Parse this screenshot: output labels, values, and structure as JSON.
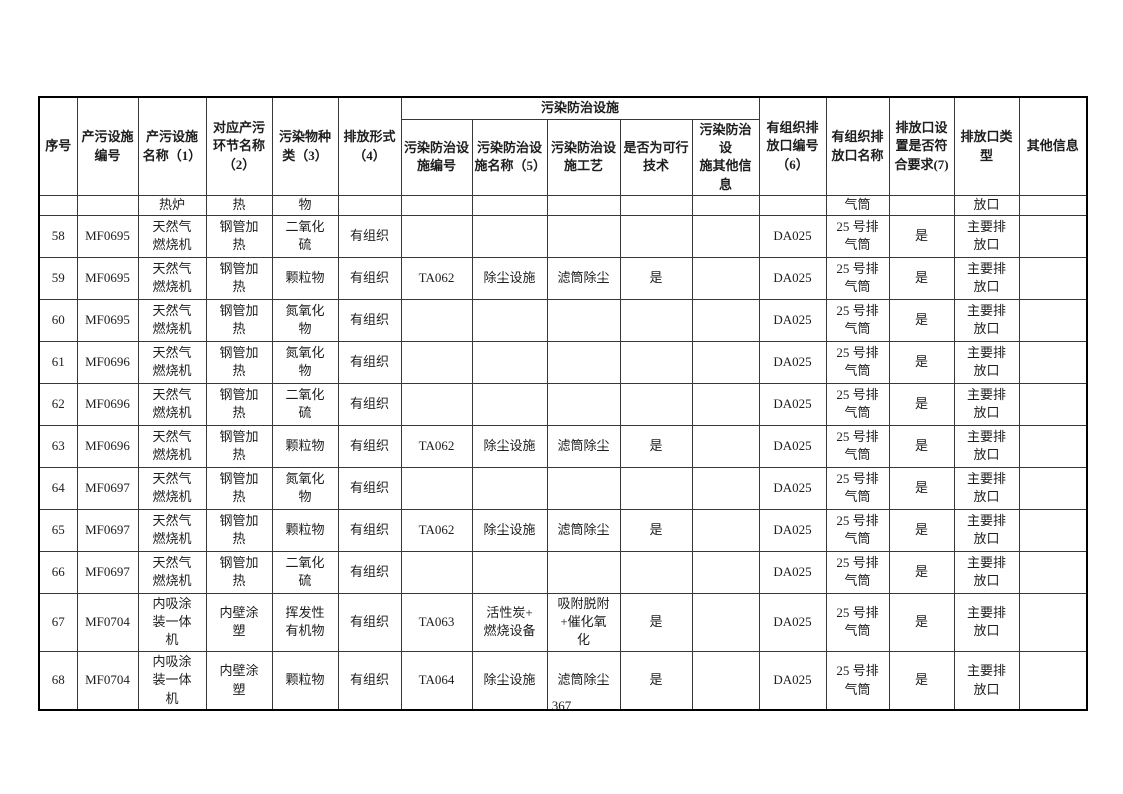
{
  "page": {
    "number": "367"
  },
  "table": {
    "header": {
      "group": "污染防治设施",
      "cells": [
        "序号",
        "产污设施\n编号",
        "产污设施\n名称（1）",
        "对应产污\n环节名称\n（2）",
        "污染物种\n类（3）",
        "排放形式\n（4）",
        "污染防治设\n施编号",
        "污染防治设\n施名称（5）",
        "污染防治设\n施工艺",
        "是否为可行\n技术",
        "污染防治设\n施其他信息",
        "有组织排\n放口编号\n（6）",
        "有组织排\n放口名称",
        "排放口设\n置是否符\n合要求(7)",
        "排放口类\n型",
        "其他信息"
      ]
    },
    "carryover_row": [
      "",
      "",
      "热炉",
      "热",
      "物",
      "",
      "",
      "",
      "",
      "",
      "",
      "",
      "气筒",
      "",
      "放口",
      ""
    ],
    "rows": [
      [
        "58",
        "MF0695",
        "天然气\n燃烧机",
        "钢管加\n热",
        "二氧化\n硫",
        "有组织",
        "",
        "",
        "",
        "",
        "",
        "DA025",
        "25 号排\n气筒",
        "是",
        "主要排\n放口",
        ""
      ],
      [
        "59",
        "MF0695",
        "天然气\n燃烧机",
        "钢管加\n热",
        "颗粒物",
        "有组织",
        "TA062",
        "除尘设施",
        "滤筒除尘",
        "是",
        "",
        "DA025",
        "25 号排\n气筒",
        "是",
        "主要排\n放口",
        ""
      ],
      [
        "60",
        "MF0695",
        "天然气\n燃烧机",
        "钢管加\n热",
        "氮氧化\n物",
        "有组织",
        "",
        "",
        "",
        "",
        "",
        "DA025",
        "25 号排\n气筒",
        "是",
        "主要排\n放口",
        ""
      ],
      [
        "61",
        "MF0696",
        "天然气\n燃烧机",
        "钢管加\n热",
        "氮氧化\n物",
        "有组织",
        "",
        "",
        "",
        "",
        "",
        "DA025",
        "25 号排\n气筒",
        "是",
        "主要排\n放口",
        ""
      ],
      [
        "62",
        "MF0696",
        "天然气\n燃烧机",
        "钢管加\n热",
        "二氧化\n硫",
        "有组织",
        "",
        "",
        "",
        "",
        "",
        "DA025",
        "25 号排\n气筒",
        "是",
        "主要排\n放口",
        ""
      ],
      [
        "63",
        "MF0696",
        "天然气\n燃烧机",
        "钢管加\n热",
        "颗粒物",
        "有组织",
        "TA062",
        "除尘设施",
        "滤筒除尘",
        "是",
        "",
        "DA025",
        "25 号排\n气筒",
        "是",
        "主要排\n放口",
        ""
      ],
      [
        "64",
        "MF0697",
        "天然气\n燃烧机",
        "钢管加\n热",
        "氮氧化\n物",
        "有组织",
        "",
        "",
        "",
        "",
        "",
        "DA025",
        "25 号排\n气筒",
        "是",
        "主要排\n放口",
        ""
      ],
      [
        "65",
        "MF0697",
        "天然气\n燃烧机",
        "钢管加\n热",
        "颗粒物",
        "有组织",
        "TA062",
        "除尘设施",
        "滤筒除尘",
        "是",
        "",
        "DA025",
        "25 号排\n气筒",
        "是",
        "主要排\n放口",
        ""
      ],
      [
        "66",
        "MF0697",
        "天然气\n燃烧机",
        "钢管加\n热",
        "二氧化\n硫",
        "有组织",
        "",
        "",
        "",
        "",
        "",
        "DA025",
        "25 号排\n气筒",
        "是",
        "主要排\n放口",
        ""
      ],
      [
        "67",
        "MF0704",
        "内吸涂\n装一体\n机",
        "内壁涂\n塑",
        "挥发性\n有机物",
        "有组织",
        "TA063",
        "活性炭+\n燃烧设备",
        "吸附脱附\n+催化氧\n化",
        "是",
        "",
        "DA025",
        "25 号排\n气筒",
        "是",
        "主要排\n放口",
        ""
      ],
      [
        "68",
        "MF0704",
        "内吸涂\n装一体\n机",
        "内壁涂\n塑",
        "颗粒物",
        "有组织",
        "TA064",
        "除尘设施",
        "滤筒除尘",
        "是",
        "",
        "DA025",
        "25 号排\n气筒",
        "是",
        "主要排\n放口",
        ""
      ]
    ]
  }
}
